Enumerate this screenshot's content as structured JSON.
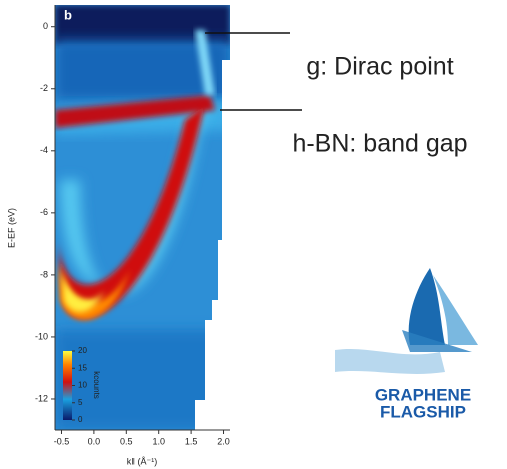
{
  "chart_data": {
    "type": "heatmap",
    "panel_label": "b",
    "y_label": "E-EF (eV)",
    "x_label": "k‖ (Å⁻¹)",
    "ylim": [
      -13,
      0.7
    ],
    "yticks": [
      0,
      -2,
      -4,
      -6,
      -8,
      -10,
      -12
    ],
    "xlim": [
      -0.6,
      2.1
    ],
    "xticks": [
      {
        "value": -0.5,
        "label": "-0.5"
      },
      {
        "value": 0,
        "label": "0.0"
      },
      {
        "value": 0.5,
        "label": "0.5"
      },
      {
        "value": 1,
        "label": "1.0"
      },
      {
        "value": 1.5,
        "label": "1.5"
      },
      {
        "value": 2,
        "label": "2.0"
      }
    ],
    "colorbar": {
      "label": "kcounts",
      "lim": [
        0,
        20
      ],
      "ticks": [
        0,
        5,
        10,
        15,
        20
      ]
    },
    "annotations": [
      "g: Dirac point",
      "h-BN: band gap"
    ]
  },
  "logo": {
    "lines": [
      "GRAPHENE",
      "FLAGSHIP"
    ]
  }
}
